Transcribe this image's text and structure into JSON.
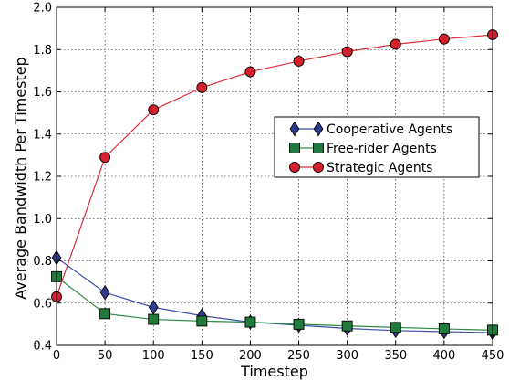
{
  "chart_data": {
    "type": "line",
    "title": "",
    "xlabel": "Timestep",
    "ylabel": "Average Bandwidth Per Timestep",
    "xlim": [
      0,
      450
    ],
    "ylim": [
      0.4,
      2.0
    ],
    "xticks": [
      0,
      50,
      100,
      150,
      200,
      250,
      300,
      350,
      400,
      450
    ],
    "yticks": [
      0.4,
      0.6,
      0.8,
      1.0,
      1.2,
      1.4,
      1.6,
      1.8,
      2.0
    ],
    "xtick_labels": [
      "0",
      "50",
      "100",
      "150",
      "200",
      "250",
      "300",
      "350",
      "400",
      "450"
    ],
    "ytick_labels": [
      "0.4",
      "0.6",
      "0.8",
      "1.0",
      "1.2",
      "1.4",
      "1.6",
      "1.8",
      "2.0"
    ],
    "grid": true,
    "legend_position": "center-right",
    "x": [
      0,
      50,
      100,
      150,
      200,
      250,
      300,
      350,
      400,
      450
    ],
    "series": [
      {
        "name": "Cooperative Agents",
        "marker": "diamond",
        "color": "#2f3d8f",
        "line_color": "#3e4fa6",
        "values": [
          0.815,
          0.65,
          0.58,
          0.54,
          0.51,
          0.495,
          0.48,
          0.47,
          0.465,
          0.46
        ]
      },
      {
        "name": "Free-rider Agents",
        "marker": "square",
        "color": "#1f7a3c",
        "line_color": "#2f8a4a",
        "values": [
          0.725,
          0.55,
          0.523,
          0.515,
          0.51,
          0.5,
          0.492,
          0.485,
          0.478,
          0.472
        ]
      },
      {
        "name": "Strategic Agents",
        "marker": "circle",
        "color": "#d41f2f",
        "line_color": "#d92b3a",
        "values": [
          0.63,
          1.29,
          1.515,
          1.62,
          1.695,
          1.745,
          1.79,
          1.825,
          1.85,
          1.87
        ]
      }
    ]
  }
}
